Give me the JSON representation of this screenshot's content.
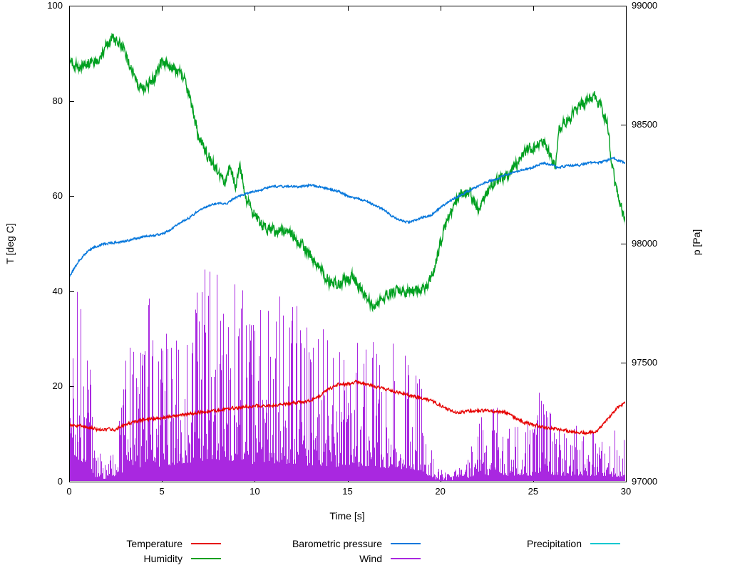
{
  "chart_data": {
    "type": "line",
    "title": "",
    "xlabel": "Time [s]",
    "ylabel_left": "T [deg C]",
    "ylabel_right": "p [Pa]",
    "x_range": [
      0,
      30
    ],
    "y_left_range": [
      0,
      100
    ],
    "y_right_range": [
      97000,
      99000
    ],
    "x_ticks": [
      0,
      5,
      10,
      15,
      20,
      25,
      30
    ],
    "y_left_ticks": [
      0,
      20,
      40,
      60,
      80,
      100
    ],
    "y_right_ticks": [
      97000,
      97500,
      98000,
      98500,
      99000
    ],
    "grid": false,
    "seed": 1337,
    "series": [
      {
        "name": "Wind",
        "color": "#a928e0",
        "axis": "left",
        "style": "spikes",
        "baseline": 0,
        "points": [
          [
            0,
            30
          ],
          [
            0.3,
            48
          ],
          [
            0.6,
            40
          ],
          [
            1,
            35
          ],
          [
            1.4,
            10
          ],
          [
            1.8,
            6
          ],
          [
            2.2,
            6
          ],
          [
            2.6,
            10
          ],
          [
            3,
            25
          ],
          [
            3.4,
            35
          ],
          [
            3.8,
            30
          ],
          [
            4.2,
            45
          ],
          [
            4.6,
            32
          ],
          [
            5,
            30
          ],
          [
            5.4,
            34
          ],
          [
            5.8,
            36
          ],
          [
            6.2,
            38
          ],
          [
            6.6,
            40
          ],
          [
            7,
            42
          ],
          [
            7.4,
            46
          ],
          [
            7.8,
            48
          ],
          [
            8.2,
            44
          ],
          [
            8.6,
            40
          ],
          [
            9,
            48
          ],
          [
            9.4,
            42
          ],
          [
            9.8,
            36
          ],
          [
            10.2,
            40
          ],
          [
            10.6,
            42
          ],
          [
            11,
            38
          ],
          [
            11.4,
            41
          ],
          [
            11.8,
            36
          ],
          [
            12.2,
            38
          ],
          [
            12.6,
            36
          ],
          [
            13,
            32
          ],
          [
            13.4,
            35
          ],
          [
            13.8,
            31
          ],
          [
            14.2,
            30
          ],
          [
            14.6,
            32
          ],
          [
            15,
            28
          ],
          [
            15.4,
            30
          ],
          [
            15.8,
            32
          ],
          [
            16.2,
            33
          ],
          [
            16.6,
            30
          ],
          [
            17,
            28
          ],
          [
            17.4,
            30
          ],
          [
            17.8,
            26
          ],
          [
            18.2,
            28
          ],
          [
            18.6,
            25
          ],
          [
            19,
            22
          ],
          [
            19.4,
            10
          ],
          [
            19.8,
            4
          ],
          [
            20.2,
            2
          ],
          [
            20.6,
            2
          ],
          [
            21,
            3
          ],
          [
            21.4,
            6
          ],
          [
            21.8,
            12
          ],
          [
            22.2,
            16
          ],
          [
            22.6,
            13
          ],
          [
            23,
            24
          ],
          [
            23.4,
            13
          ],
          [
            23.8,
            11
          ],
          [
            24.2,
            14
          ],
          [
            24.6,
            13
          ],
          [
            25,
            12
          ],
          [
            25.4,
            21
          ],
          [
            25.8,
            16
          ],
          [
            26.2,
            13
          ],
          [
            26.6,
            12
          ],
          [
            27,
            11
          ],
          [
            27.4,
            13
          ],
          [
            27.8,
            9
          ],
          [
            28.2,
            11
          ],
          [
            28.6,
            9
          ],
          [
            29,
            9
          ],
          [
            29.4,
            11
          ],
          [
            29.8,
            9
          ],
          [
            30,
            9
          ]
        ]
      },
      {
        "name": "Humidity",
        "color": "#00a020",
        "axis": "left",
        "style": "noisy-line",
        "noise": 1.6,
        "smooth": 0.35,
        "width": 1.4,
        "points": [
          [
            0,
            88
          ],
          [
            0.5,
            87.5
          ],
          [
            1,
            88
          ],
          [
            1.5,
            88.5
          ],
          [
            1.8,
            90
          ],
          [
            2,
            92
          ],
          [
            2.3,
            93
          ],
          [
            2.6,
            92.5
          ],
          [
            3,
            91
          ],
          [
            3.3,
            87
          ],
          [
            3.6,
            84
          ],
          [
            4,
            82.5
          ],
          [
            4.4,
            84
          ],
          [
            4.7,
            85.5
          ],
          [
            5,
            88.5
          ],
          [
            5.3,
            88
          ],
          [
            5.6,
            87
          ],
          [
            6,
            86
          ],
          [
            6.3,
            83.5
          ],
          [
            6.6,
            79
          ],
          [
            7,
            72
          ],
          [
            7.4,
            69
          ],
          [
            7.8,
            66.5
          ],
          [
            8.1,
            64
          ],
          [
            8.4,
            63.5
          ],
          [
            8.7,
            66
          ],
          [
            9,
            62
          ],
          [
            9.2,
            66.5
          ],
          [
            9.5,
            60
          ],
          [
            9.8,
            57.5
          ],
          [
            10,
            56
          ],
          [
            10.4,
            54
          ],
          [
            10.8,
            53
          ],
          [
            11.2,
            52.5
          ],
          [
            11.6,
            53
          ],
          [
            12,
            52
          ],
          [
            12.4,
            50
          ],
          [
            12.8,
            48.5
          ],
          [
            13.2,
            46.5
          ],
          [
            13.6,
            44.5
          ],
          [
            14,
            42
          ],
          [
            14.5,
            41.5
          ],
          [
            15,
            42.5
          ],
          [
            15.3,
            43
          ],
          [
            15.7,
            40.5
          ],
          [
            16,
            38.5
          ],
          [
            16.4,
            37
          ],
          [
            16.8,
            38.5
          ],
          [
            17.2,
            39.5
          ],
          [
            17.6,
            40
          ],
          [
            18.2,
            40
          ],
          [
            18.8,
            40.2
          ],
          [
            19.2,
            41
          ],
          [
            19.6,
            43.5
          ],
          [
            20,
            50
          ],
          [
            20.4,
            55.5
          ],
          [
            20.8,
            58.5
          ],
          [
            21.2,
            61
          ],
          [
            21.6,
            60.5
          ],
          [
            22,
            57.5
          ],
          [
            22.4,
            59.5
          ],
          [
            22.8,
            62.5
          ],
          [
            23.2,
            63.5
          ],
          [
            23.6,
            64.5
          ],
          [
            24,
            66
          ],
          [
            24.4,
            68.5
          ],
          [
            24.8,
            70
          ],
          [
            25.2,
            70.5
          ],
          [
            25.6,
            71.5
          ],
          [
            26,
            67.5
          ],
          [
            26.2,
            66.5
          ],
          [
            26.4,
            74.5
          ],
          [
            26.8,
            76
          ],
          [
            27.2,
            77.5
          ],
          [
            27.6,
            79
          ],
          [
            28,
            80.5
          ],
          [
            28.3,
            81
          ],
          [
            28.6,
            79.5
          ],
          [
            29,
            75
          ],
          [
            29.2,
            68
          ],
          [
            29.4,
            63
          ],
          [
            29.7,
            58
          ],
          [
            30,
            55
          ]
        ]
      },
      {
        "name": "Barometric pressure",
        "color": "#0878dc",
        "axis": "right",
        "style": "noisy-line",
        "noise": 6,
        "smooth": 0.4,
        "width": 1.5,
        "points": [
          [
            0,
            97860
          ],
          [
            0.5,
            97925
          ],
          [
            1,
            97970
          ],
          [
            1.5,
            97990
          ],
          [
            2,
            98000
          ],
          [
            2.5,
            98005
          ],
          [
            3,
            98010
          ],
          [
            3.5,
            98020
          ],
          [
            4,
            98030
          ],
          [
            4.5,
            98035
          ],
          [
            5,
            98040
          ],
          [
            5.5,
            98060
          ],
          [
            6,
            98090
          ],
          [
            6.5,
            98110
          ],
          [
            7,
            98140
          ],
          [
            7.5,
            98160
          ],
          [
            8,
            98170
          ],
          [
            8.5,
            98170
          ],
          [
            9,
            98195
          ],
          [
            9.5,
            98210
          ],
          [
            10,
            98220
          ],
          [
            10.5,
            98230
          ],
          [
            11,
            98240
          ],
          [
            11.5,
            98240
          ],
          [
            12,
            98240
          ],
          [
            12.5,
            98240
          ],
          [
            13,
            98245
          ],
          [
            13.5,
            98240
          ],
          [
            14,
            98230
          ],
          [
            14.5,
            98220
          ],
          [
            15,
            98200
          ],
          [
            15.5,
            98190
          ],
          [
            16,
            98180
          ],
          [
            16.5,
            98160
          ],
          [
            17,
            98140
          ],
          [
            17.5,
            98110
          ],
          [
            18,
            98095
          ],
          [
            18.3,
            98090
          ],
          [
            18.7,
            98100
          ],
          [
            19,
            98110
          ],
          [
            19.5,
            98120
          ],
          [
            20,
            98150
          ],
          [
            20.5,
            98180
          ],
          [
            21,
            98200
          ],
          [
            21.5,
            98220
          ],
          [
            22,
            98240
          ],
          [
            22.5,
            98260
          ],
          [
            23,
            98270
          ],
          [
            23.5,
            98290
          ],
          [
            24,
            98300
          ],
          [
            24.5,
            98310
          ],
          [
            25,
            98320
          ],
          [
            25.5,
            98340
          ],
          [
            26,
            98330
          ],
          [
            26.3,
            98320
          ],
          [
            26.7,
            98325
          ],
          [
            27,
            98330
          ],
          [
            27.5,
            98330
          ],
          [
            28,
            98340
          ],
          [
            28.5,
            98340
          ],
          [
            29,
            98350
          ],
          [
            29.3,
            98360
          ],
          [
            29.6,
            98350
          ],
          [
            30,
            98340
          ]
        ]
      },
      {
        "name": "Temperature",
        "color": "#e60000",
        "axis": "left",
        "style": "noisy-line",
        "noise": 0.45,
        "smooth": 0.4,
        "width": 1.3,
        "points": [
          [
            0,
            12
          ],
          [
            1,
            11.5
          ],
          [
            1.5,
            11
          ],
          [
            2.5,
            11
          ],
          [
            3,
            12
          ],
          [
            4,
            13
          ],
          [
            5,
            13.5
          ],
          [
            6,
            14
          ],
          [
            7,
            14.5
          ],
          [
            8,
            15
          ],
          [
            9,
            15.5
          ],
          [
            10,
            16
          ],
          [
            11,
            16
          ],
          [
            12,
            16.5
          ],
          [
            13,
            17
          ],
          [
            13.5,
            18
          ],
          [
            14,
            19.5
          ],
          [
            14.5,
            20.5
          ],
          [
            15,
            20.5
          ],
          [
            15.5,
            21
          ],
          [
            16,
            20.5
          ],
          [
            16.5,
            20
          ],
          [
            17,
            19.5
          ],
          [
            17.5,
            19
          ],
          [
            18,
            18.5
          ],
          [
            18.5,
            18
          ],
          [
            19,
            17.5
          ],
          [
            19.5,
            17
          ],
          [
            20,
            16
          ],
          [
            20.5,
            15
          ],
          [
            21,
            14.5
          ],
          [
            21.5,
            14.8
          ],
          [
            22,
            15
          ],
          [
            22.5,
            14.8
          ],
          [
            23,
            14.8
          ],
          [
            23.5,
            14.5
          ],
          [
            24,
            13.5
          ],
          [
            24.5,
            12.5
          ],
          [
            25,
            12
          ],
          [
            25.5,
            11.5
          ],
          [
            26,
            11.2
          ],
          [
            26.5,
            11
          ],
          [
            27,
            10.5
          ],
          [
            27.5,
            10.3
          ],
          [
            28,
            10.3
          ],
          [
            28.5,
            10.8
          ],
          [
            29,
            13
          ],
          [
            29.5,
            15.5
          ],
          [
            30,
            16.5
          ]
        ]
      },
      {
        "name": "Precipitation",
        "color": "#00c8d0",
        "axis": "left",
        "style": "none",
        "points": []
      }
    ],
    "annotations": [
      {
        "type": "vline",
        "x": 30,
        "color": "#8b1a1a",
        "width": 2
      }
    ]
  },
  "legend": {
    "rows": [
      [
        "Temperature",
        "Barometric pressure",
        "Precipitation"
      ],
      [
        "Humidity",
        "Wind",
        ""
      ]
    ]
  }
}
